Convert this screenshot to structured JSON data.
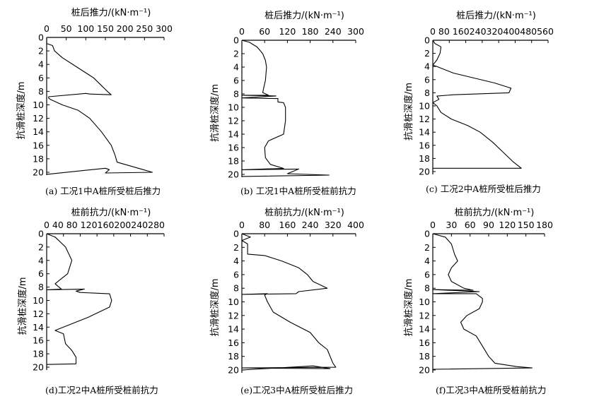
{
  "figure": {
    "ylabel": "抗滑桩深度/m",
    "ytick_labels": [
      "0",
      "2",
      "4",
      "6",
      "8",
      "10",
      "12",
      "14",
      "16",
      "18",
      "20"
    ]
  },
  "chart_data": [
    {
      "type": "line",
      "id": "a",
      "title": "桩后推力/(kN·m⁻¹)",
      "caption": "(a) 工况1中A桩所受桩后推力",
      "xlabel": "桩后推力/(kN·m⁻¹)",
      "ylabel": "抗滑桩深度/m",
      "xticks": [
        0,
        50,
        100,
        150,
        200,
        250,
        300
      ],
      "xlim": [
        0,
        300
      ],
      "ylim": [
        0,
        20
      ],
      "yticks": [
        0,
        2,
        4,
        6,
        8,
        10,
        12,
        14,
        16,
        18,
        20
      ],
      "points": [
        [
          0,
          0
        ],
        [
          0,
          0.9
        ],
        [
          15,
          1.2
        ],
        [
          20,
          2
        ],
        [
          40,
          3
        ],
        [
          80,
          4.5
        ],
        [
          120,
          6
        ],
        [
          155,
          8
        ],
        [
          165,
          8.5
        ],
        [
          110,
          8.4
        ],
        [
          100,
          8.3
        ],
        [
          5,
          8.8
        ],
        [
          5,
          9
        ],
        [
          10,
          9.2
        ],
        [
          40,
          10
        ],
        [
          80,
          10.8
        ],
        [
          110,
          12
        ],
        [
          140,
          14
        ],
        [
          165,
          16
        ],
        [
          175,
          17.5
        ],
        [
          180,
          18.5
        ],
        [
          240,
          19.5
        ],
        [
          270,
          20
        ],
        [
          150,
          20.1
        ],
        [
          160,
          19.6
        ],
        [
          150,
          19.4
        ],
        [
          0,
          20.3
        ]
      ]
    },
    {
      "type": "line",
      "id": "b",
      "title": "桩后推力/(kN·m⁻¹)",
      "caption": "(b) 工况1中A桩所受桩前抗力",
      "xlabel": "桩后推力/(kN·m⁻¹)",
      "ylabel": "抗滑桩深度/m",
      "xticks": [
        0,
        60,
        120,
        180,
        240,
        300
      ],
      "xlim": [
        0,
        300
      ],
      "ylim": [
        0,
        20
      ],
      "yticks": [
        0,
        2,
        4,
        6,
        8,
        10,
        12,
        14,
        16,
        18,
        20
      ],
      "points": [
        [
          0,
          0
        ],
        [
          20,
          0.3
        ],
        [
          40,
          1
        ],
        [
          55,
          2
        ],
        [
          62,
          3
        ],
        [
          65,
          4
        ],
        [
          62,
          6
        ],
        [
          58,
          7
        ],
        [
          55,
          7.8
        ],
        [
          70,
          8.2
        ],
        [
          0,
          8.2
        ],
        [
          90,
          8.3
        ],
        [
          0,
          8.6
        ],
        [
          95,
          8.7
        ],
        [
          95,
          9.2
        ],
        [
          110,
          9.3
        ],
        [
          115,
          10
        ],
        [
          115,
          12
        ],
        [
          110,
          14
        ],
        [
          70,
          15
        ],
        [
          60,
          16
        ],
        [
          62,
          17.5
        ],
        [
          75,
          18.5
        ],
        [
          110,
          19.1
        ],
        [
          0,
          19.3
        ],
        [
          150,
          19.2
        ],
        [
          120,
          19.9
        ],
        [
          230,
          20.1
        ],
        [
          0,
          20.3
        ]
      ]
    },
    {
      "type": "line",
      "id": "c",
      "title": "桩后推力/(kN·m⁻¹)",
      "caption": "(c) 工况2中A桩所受桩后推力",
      "xlabel": "桩后推力/(kN·m⁻¹)",
      "ylabel": "抗滑桩深度/m",
      "xticks": [
        0,
        80,
        160,
        240,
        320,
        400,
        480,
        560
      ],
      "xtick_text": "0 80 160240320400480560",
      "xlim": [
        0,
        560
      ],
      "ylim": [
        0,
        20
      ],
      "yticks": [
        0,
        2,
        4,
        6,
        8,
        10,
        12,
        14,
        16,
        18,
        20
      ],
      "points": [
        [
          0,
          0
        ],
        [
          10,
          0.5
        ],
        [
          40,
          1
        ],
        [
          35,
          2
        ],
        [
          20,
          3
        ],
        [
          0,
          3.8
        ],
        [
          20,
          4
        ],
        [
          100,
          5
        ],
        [
          300,
          6.5
        ],
        [
          380,
          7.3
        ],
        [
          370,
          8
        ],
        [
          100,
          8.3
        ],
        [
          20,
          8.5
        ],
        [
          30,
          9
        ],
        [
          0,
          9.5
        ],
        [
          20,
          10
        ],
        [
          40,
          11
        ],
        [
          90,
          12
        ],
        [
          170,
          13
        ],
        [
          230,
          14
        ],
        [
          290,
          15.5
        ],
        [
          340,
          17
        ],
        [
          390,
          18.5
        ],
        [
          430,
          19.5
        ],
        [
          0,
          19.5
        ]
      ]
    },
    {
      "type": "line",
      "id": "d",
      "title": "桩前抗力/(kN·m⁻¹)",
      "caption": "(d)工况2中A桩所受桩前抗力",
      "xlabel": "桩前抗力/(kN·m⁻¹)",
      "ylabel": "抗滑桩深度/m",
      "xticks": [
        0,
        40,
        80,
        120,
        160,
        200,
        240,
        280
      ],
      "xtick_text": "0 40 80 120160200240280",
      "xlim": [
        0,
        280
      ],
      "ylim": [
        0,
        20
      ],
      "yticks": [
        0,
        2,
        4,
        6,
        8,
        10,
        12,
        14,
        16,
        18,
        20
      ],
      "points": [
        [
          0,
          0
        ],
        [
          20,
          0.5
        ],
        [
          45,
          2
        ],
        [
          60,
          4
        ],
        [
          50,
          6
        ],
        [
          30,
          7
        ],
        [
          20,
          7.5
        ],
        [
          35,
          8.3
        ],
        [
          0,
          8.4
        ],
        [
          90,
          8.3
        ],
        [
          70,
          8.6
        ],
        [
          80,
          8.8
        ],
        [
          150,
          9
        ],
        [
          155,
          10
        ],
        [
          150,
          11
        ],
        [
          100,
          12.5
        ],
        [
          40,
          14
        ],
        [
          20,
          14.5
        ],
        [
          40,
          15
        ],
        [
          45,
          16.5
        ],
        [
          60,
          17.5
        ],
        [
          70,
          18.5
        ],
        [
          70,
          19.5
        ],
        [
          0,
          19.6
        ]
      ]
    },
    {
      "type": "line",
      "id": "e",
      "title": "桩前抗力/(kN·m⁻¹)",
      "caption": "(e)工况3中A桩所受桩后推力",
      "xlabel": "桩前抗力/(kN·m⁻¹)",
      "ylabel": "抗滑桩深度/m",
      "xticks": [
        0,
        80,
        160,
        240,
        320,
        400
      ],
      "xlim": [
        0,
        400
      ],
      "ylim": [
        0,
        20
      ],
      "yticks": [
        0,
        2,
        4,
        6,
        8,
        10,
        12,
        14,
        16,
        18,
        20
      ],
      "points": [
        [
          0,
          0
        ],
        [
          30,
          0.5
        ],
        [
          0,
          1
        ],
        [
          20,
          1.5
        ],
        [
          20,
          3
        ],
        [
          80,
          3.2
        ],
        [
          140,
          4
        ],
        [
          200,
          5
        ],
        [
          230,
          6
        ],
        [
          250,
          7
        ],
        [
          300,
          8
        ],
        [
          200,
          8.5
        ],
        [
          190,
          8.8
        ],
        [
          0,
          8.9
        ],
        [
          90,
          8.8
        ],
        [
          80,
          9
        ],
        [
          90,
          10
        ],
        [
          110,
          11.5
        ],
        [
          170,
          13
        ],
        [
          240,
          14.5
        ],
        [
          270,
          16
        ],
        [
          300,
          17
        ],
        [
          310,
          18
        ],
        [
          320,
          19
        ],
        [
          330,
          19.6
        ],
        [
          0,
          19.7
        ],
        [
          310,
          19.8
        ],
        [
          250,
          19.4
        ],
        [
          0,
          20
        ]
      ]
    },
    {
      "type": "line",
      "id": "f",
      "title": "桩前抗力/(kN·m⁻¹)",
      "caption": "(f)工况3中A桩所受桩前抗力",
      "xlabel": "桩前抗力/(kN·m⁻¹)",
      "ylabel": "抗滑桩深度/m",
      "xticks": [
        0,
        30,
        60,
        90,
        120,
        150,
        180
      ],
      "xlim": [
        0,
        180
      ],
      "ylim": [
        0,
        20
      ],
      "yticks": [
        0,
        2,
        4,
        6,
        8,
        10,
        12,
        14,
        16,
        18,
        20
      ],
      "points": [
        [
          0,
          0
        ],
        [
          20,
          0.5
        ],
        [
          30,
          1.5
        ],
        [
          35,
          3
        ],
        [
          40,
          4
        ],
        [
          30,
          5
        ],
        [
          25,
          6
        ],
        [
          30,
          7
        ],
        [
          50,
          8
        ],
        [
          65,
          8.3
        ],
        [
          0,
          8.2
        ],
        [
          75,
          8.5
        ],
        [
          0,
          8.8
        ],
        [
          70,
          8.8
        ],
        [
          80,
          9.5
        ],
        [
          80,
          10
        ],
        [
          75,
          11
        ],
        [
          55,
          12
        ],
        [
          45,
          13
        ],
        [
          50,
          14
        ],
        [
          70,
          15
        ],
        [
          80,
          16.5
        ],
        [
          90,
          18
        ],
        [
          100,
          19
        ],
        [
          135,
          19.5
        ],
        [
          160,
          19.7
        ],
        [
          0,
          19.9
        ]
      ]
    }
  ]
}
